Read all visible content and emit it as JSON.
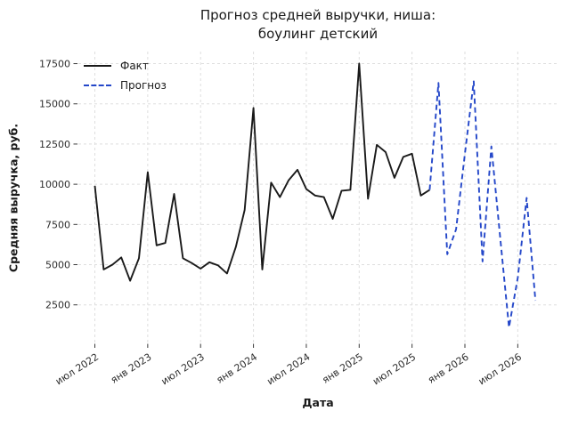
{
  "title": {
    "line1": "Прогноз средней выручки, ниша:",
    "line2": "боулинг детский"
  },
  "chart_data": {
    "type": "line",
    "title": "Прогноз средней выручки, ниша: боулинг детский",
    "xlabel": "Дата",
    "ylabel": "Средняя выручка, руб.",
    "x_unit": "monthly points, month 0 = июл 2022",
    "x_tick_labels": [
      "июл 2022",
      "янв 2023",
      "июл 2023",
      "янв 2024",
      "июл 2024",
      "янв 2025",
      "июл 2025",
      "янв 2026",
      "июл 2026"
    ],
    "x_tick_month_interval": 6,
    "y_ticks": [
      2500,
      5000,
      7500,
      10000,
      12500,
      15000,
      17500
    ],
    "ylim": [
      100,
      18300
    ],
    "grid": "both, light dashed",
    "legend_position": "upper left",
    "series": [
      {
        "name": "Факт",
        "color": "#1a1a1a",
        "dash": "solid",
        "x_start_month": 0,
        "months": [
          "2022-07",
          "2022-08",
          "2022-09",
          "2022-10",
          "2022-11",
          "2022-12",
          "2023-01",
          "2023-02",
          "2023-03",
          "2023-04",
          "2023-05",
          "2023-06",
          "2023-07",
          "2023-08",
          "2023-09",
          "2023-10",
          "2023-11",
          "2023-12",
          "2024-01",
          "2024-02",
          "2024-03",
          "2024-04",
          "2024-05",
          "2024-06",
          "2024-07",
          "2024-08",
          "2024-09",
          "2024-10",
          "2024-11",
          "2024-12",
          "2025-01",
          "2025-02",
          "2025-03",
          "2025-04",
          "2025-05",
          "2025-06",
          "2025-07",
          "2025-08",
          "2025-09"
        ],
        "values": [
          9900,
          4700,
          5000,
          5450,
          4000,
          5400,
          10750,
          6200,
          6350,
          9400,
          5400,
          5100,
          4750,
          5150,
          4950,
          4450,
          6100,
          8400,
          14750,
          4700,
          10100,
          9200,
          10250,
          10900,
          9700,
          9300,
          9200,
          7850,
          9600,
          9650,
          17500,
          9100,
          12450,
          12000,
          10400,
          11700,
          11900,
          9300,
          9650
        ]
      },
      {
        "name": "Прогноз",
        "color": "#2447c9",
        "dash": "dashed",
        "x_start_month": 38,
        "months": [
          "2025-09",
          "2025-10",
          "2025-11",
          "2025-12",
          "2026-01",
          "2026-02",
          "2026-03",
          "2026-04",
          "2026-05",
          "2026-06",
          "2026-07",
          "2026-08",
          "2026-09"
        ],
        "values": [
          9650,
          16300,
          5650,
          7200,
          11900,
          16400,
          5200,
          12350,
          6700,
          1100,
          4200,
          9150,
          2760
        ]
      }
    ]
  }
}
